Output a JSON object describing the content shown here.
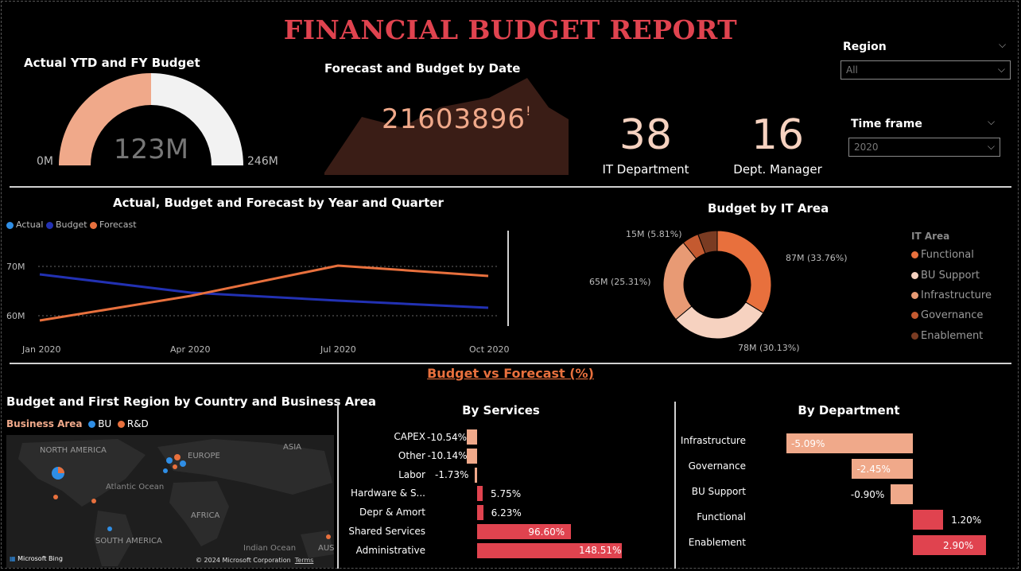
{
  "report_title": "FINANCIAL BUDGET REPORT",
  "gauge": {
    "title": "Actual YTD and FY Budget",
    "value_label": "123M",
    "min_label": "0M",
    "max_label": "246M",
    "fraction": 0.5,
    "colors": {
      "fill": "#f0a98a",
      "rest": "#f2f2f2"
    }
  },
  "forecast_card": {
    "title": "Forecast and Budget by Date",
    "value": "21603896",
    "value_suffix": "!"
  },
  "kpis": [
    {
      "value": "38",
      "label": "IT Department"
    },
    {
      "value": "16",
      "label": "Dept. Manager"
    }
  ],
  "slicers": [
    {
      "label": "Region",
      "value": "All"
    },
    {
      "label": "Time frame",
      "value": "2020"
    }
  ],
  "line_chart": {
    "title": "Actual, Budget and Forecast by Year and Quarter",
    "legend": [
      {
        "name": "Actual",
        "color": "#2f8ee5"
      },
      {
        "name": "Budget",
        "color": "#2231b3"
      },
      {
        "name": "Forecast",
        "color": "#e8703d"
      }
    ],
    "y_ticks": [
      "70M",
      "60M"
    ],
    "x_ticks": [
      "Jan 2020",
      "Apr 2020",
      "Jul 2020",
      "Oct 2020"
    ]
  },
  "donut": {
    "title": "Budget by IT Area",
    "legend_title": "IT Area",
    "slices": [
      {
        "name": "Functional",
        "label": "87M (33.76%)",
        "pct": 33.76,
        "color": "#e8703d"
      },
      {
        "name": "BU Support",
        "label": "78M (30.13%)",
        "pct": 30.13,
        "color": "#f6d2c0"
      },
      {
        "name": "Infrastructure",
        "label": "65M (25.31%)",
        "pct": 25.31,
        "color": "#e89a74"
      },
      {
        "name": "Governance",
        "label": "",
        "pct": 5.0,
        "color": "#c45a30"
      },
      {
        "name": "Enablement",
        "label": "15M (5.81%)",
        "pct": 5.81,
        "color": "#7a3b22"
      }
    ]
  },
  "section_title": "Budget vs Forecast (%)",
  "map": {
    "title": "Budget and First Region by Country and Business Area",
    "legend_title": "Business Area",
    "legend": [
      {
        "name": "BU",
        "color": "#2f8ee5"
      },
      {
        "name": "R&D",
        "color": "#e8703d"
      }
    ],
    "place_labels": [
      "NORTH AMERICA",
      "EUROPE",
      "ASIA",
      "Atlantic Ocean",
      "AFRICA",
      "SOUTH AMERICA",
      "Indian Ocean",
      "AUS"
    ],
    "brand": "Microsoft Bing",
    "copyright": "© 2024 Microsoft Corporation",
    "terms": "Terms"
  },
  "services": {
    "title": "By Services",
    "items": [
      {
        "name": "CAPEX",
        "value": -10.54,
        "label": "-10.54%"
      },
      {
        "name": "Other",
        "value": -10.14,
        "label": "-10.14%"
      },
      {
        "name": "Labor",
        "value": -1.73,
        "label": "-1.73%"
      },
      {
        "name": "Hardware & S...",
        "value": 5.75,
        "label": "5.75%"
      },
      {
        "name": "Depr & Amort",
        "value": 6.23,
        "label": "6.23%"
      },
      {
        "name": "Shared Services",
        "value": 96.6,
        "label": "96.60%"
      },
      {
        "name": "Administrative",
        "value": 148.51,
        "label": "148.51%"
      }
    ]
  },
  "departments": {
    "title": "By Department",
    "items": [
      {
        "name": "Infrastructure",
        "value": -5.09,
        "label": "-5.09%"
      },
      {
        "name": "Governance",
        "value": -2.45,
        "label": "-2.45%"
      },
      {
        "name": "BU Support",
        "value": -0.9,
        "label": "-0.90%"
      },
      {
        "name": "Functional",
        "value": 1.2,
        "label": "1.20%"
      },
      {
        "name": "Enablement",
        "value": 2.9,
        "label": "2.90%"
      }
    ]
  },
  "colors": {
    "negative": "#f0a98a",
    "positive": "#e0434f",
    "accent": "#e8703d"
  }
}
